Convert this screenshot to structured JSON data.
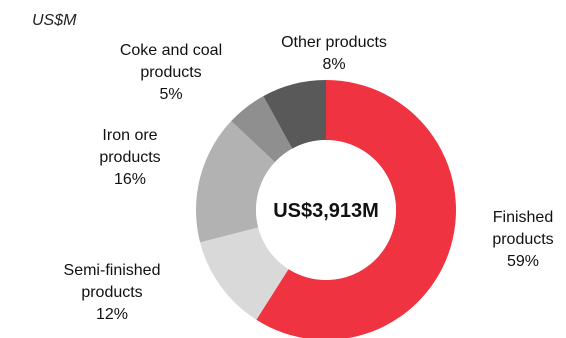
{
  "chart_data": {
    "type": "pie",
    "subtype": "donut",
    "unit_label": "US$M",
    "center_label": "US$3,913M",
    "slices": [
      {
        "name": "Finished products",
        "label_lines": [
          "Finished",
          "products"
        ],
        "percent_label": "59%",
        "value": 59,
        "color": "#ef3340"
      },
      {
        "name": "Semi-finished products",
        "label_lines": [
          "Semi-finished",
          "products"
        ],
        "percent_label": "12%",
        "value": 12,
        "color": "#d9d9d9"
      },
      {
        "name": "Iron ore products",
        "label_lines": [
          "Iron ore",
          "products"
        ],
        "percent_label": "16%",
        "value": 16,
        "color": "#b2b2b2"
      },
      {
        "name": "Coke and coal products",
        "label_lines": [
          "Coke and coal",
          "products"
        ],
        "percent_label": "5%",
        "value": 5,
        "color": "#8f8f8f"
      },
      {
        "name": "Other products",
        "label_lines": [
          "Other products"
        ],
        "percent_label": "8%",
        "value": 8,
        "color": "#595959"
      }
    ],
    "start_angle_deg": 0,
    "direction": "clockwise"
  }
}
